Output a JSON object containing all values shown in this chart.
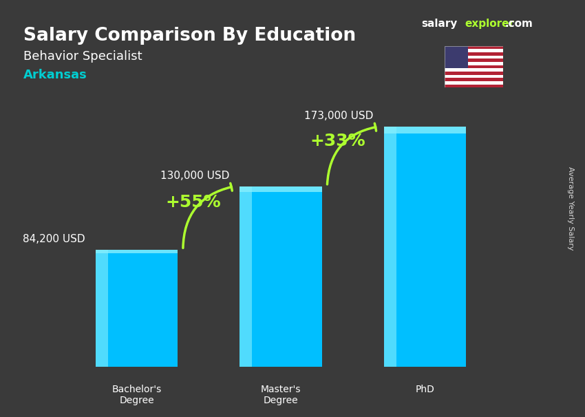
{
  "title_line1": "Salary Comparison By Education",
  "subtitle_job": "Behavior Specialist",
  "subtitle_location": "Arkansas",
  "watermark": "salaryexplorer.com",
  "ylabel": "Average Yearly Salary",
  "categories": [
    "Bachelor's\nDegree",
    "Master's\nDegree",
    "PhD"
  ],
  "values": [
    84200,
    130000,
    173000
  ],
  "value_labels": [
    "84,200 USD",
    "130,000 USD",
    "173,000 USD"
  ],
  "bar_color": "#00BFFF",
  "bar_color_top": "#00D8FF",
  "bar_color_light": "#87EEFC",
  "pct_labels": [
    "+55%",
    "+33%"
  ],
  "pct_color": "#ADFF2F",
  "background_color": "#3a3a3a",
  "text_color_white": "#FFFFFF",
  "text_color_cyan": "#00CED1",
  "ylim": [
    0,
    210000
  ]
}
